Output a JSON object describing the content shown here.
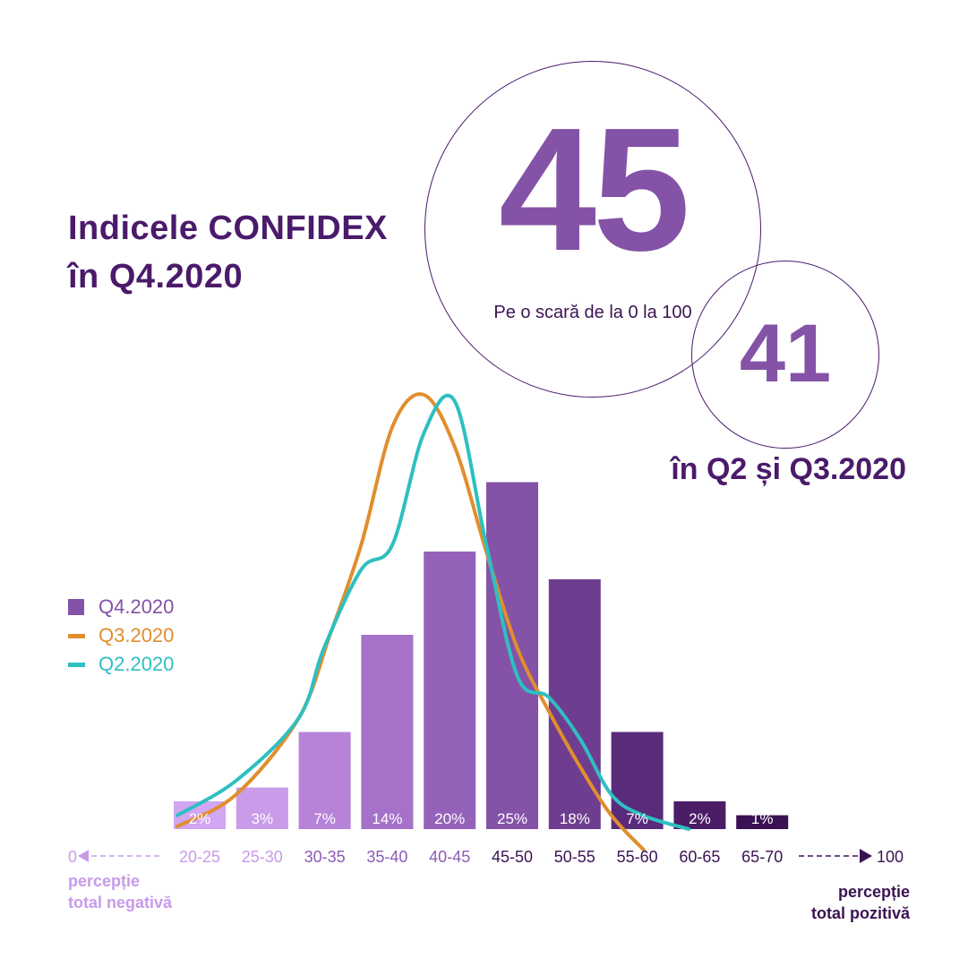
{
  "header": {
    "title_line1": "Indicele CONFIDEX",
    "title_line2": "în Q4.2020"
  },
  "highlight": {
    "current_value": "45",
    "scale_note": "Pe o scară de la 0 la 100",
    "previous_value": "41",
    "previous_label": "în Q2 și Q3.2020"
  },
  "colors": {
    "title": "#4a1a6b",
    "accent_purple": "#8452a6",
    "q3_line": "#e08e2e",
    "q2_line": "#2ebfc0",
    "negative_text": "#c79bea"
  },
  "legend": [
    {
      "label": "Q4.2020",
      "shape": "square",
      "color": "#8452a6",
      "text_color": "#8452a6"
    },
    {
      "label": "Q3.2020",
      "shape": "line",
      "color": "#e08e2e",
      "text_color": "#e08e2e"
    },
    {
      "label": "Q2.2020",
      "shape": "line",
      "color": "#2ebfc0",
      "text_color": "#2ebfc0"
    }
  ],
  "scale_ends": {
    "min_label": "0",
    "max_label": "100",
    "negative_line1": "percepție",
    "negative_line2": "total negativă",
    "positive_line1": "percepție",
    "positive_line2": "total pozitivă"
  },
  "chart_data": {
    "type": "bar",
    "categories": [
      "20-25",
      "25-30",
      "30-35",
      "35-40",
      "40-45",
      "45-50",
      "50-55",
      "55-60",
      "60-65",
      "65-70"
    ],
    "series": [
      {
        "name": "Q4.2020",
        "type": "bar",
        "values": [
          2,
          3,
          7,
          14,
          20,
          25,
          18,
          7,
          2,
          1
        ],
        "data_labels": [
          "2%",
          "3%",
          "7%",
          "14%",
          "20%",
          "25%",
          "18%",
          "7%",
          "2%",
          "1%"
        ],
        "colors": [
          "#d1a6f2",
          "#c99be9",
          "#b683d9",
          "#a571c9",
          "#9562b9",
          "#8452a6",
          "#6f3d90",
          "#5a2b7b",
          "#4a1d66",
          "#3a1152"
        ]
      },
      {
        "name": "Q3.2020",
        "type": "line",
        "color": "#e08e2e",
        "x": [
          20.3,
          25,
          30,
          32.5,
          35,
          37.5,
          40,
          42.5,
          45,
          47.5,
          50,
          52.5,
          55,
          57.6
        ],
        "values": [
          0.2,
          2.5,
          8,
          14,
          20.5,
          29,
          31.3,
          27.5,
          20,
          13,
          8.5,
          4.5,
          1,
          -1.5
        ]
      },
      {
        "name": "Q2.2020",
        "type": "line",
        "color": "#2ebfc0",
        "x": [
          20.3,
          25,
          30,
          32,
          35,
          37.5,
          40,
          42.5,
          45,
          47.5,
          50,
          52.5,
          55,
          57.5,
          61.2
        ],
        "values": [
          1,
          3.5,
          8,
          13,
          18.7,
          20.5,
          28.5,
          30.8,
          20.5,
          11,
          9.5,
          6.5,
          2.5,
          1,
          0
        ]
      }
    ],
    "ylim": [
      0,
      32
    ],
    "grid": false,
    "legend_position": "left"
  }
}
